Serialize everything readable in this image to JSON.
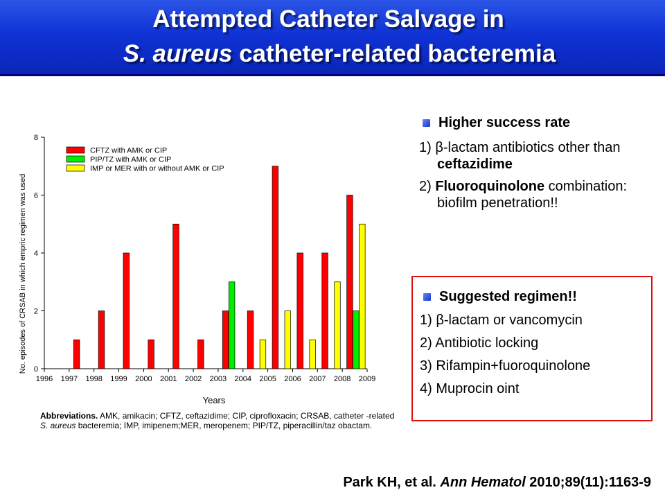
{
  "title": {
    "line1": "Attempted Catheter Salvage in",
    "line2_italic": "S. aureus",
    "line2_rest": " catheter-related bacteremia"
  },
  "chart_data": {
    "type": "bar",
    "categories": [
      "1997",
      "1998",
      "1999",
      "2000",
      "2001",
      "2002",
      "2003",
      "2004",
      "2005",
      "2006",
      "2007",
      "2008"
    ],
    "x_ticks": [
      "1996",
      "1997",
      "1998",
      "1999",
      "2000",
      "2001",
      "2002",
      "2003",
      "2004",
      "2005",
      "2006",
      "2007",
      "2008",
      "2009"
    ],
    "series": [
      {
        "name": "CFTZ with AMK or CIP",
        "color": "#ff0000",
        "values": [
          1,
          2,
          4,
          1,
          5,
          1,
          2,
          2,
          7,
          4,
          4,
          6
        ]
      },
      {
        "name": "PIP/TZ with AMK or CIP",
        "color": "#00ee00",
        "values": [
          0,
          0,
          0,
          0,
          0,
          0,
          3,
          0,
          0,
          0,
          0,
          2
        ]
      },
      {
        "name": "IMP or MER with or without AMK or CIP",
        "color": "#ffff00",
        "values": [
          0,
          0,
          0,
          0,
          0,
          0,
          0,
          1,
          2,
          1,
          3,
          5
        ]
      }
    ],
    "xlabel": "Years",
    "ylabel": "No.  episodes of CRSAB in which empric regimen was used",
    "ylim": [
      0,
      8
    ],
    "yticks": [
      0,
      2,
      4,
      6,
      8
    ],
    "legend_position": "top-left"
  },
  "abbreviations": {
    "lead": "Abbreviations.",
    "text": " AMK, amikacin; CFTZ, ceftazidime; CIP, ciprofloxacin; CRSAB, catheter -related ",
    "italic": "S. aureus",
    "text2": " bacteremia; IMP, imipenem;MER, meropenem; PIP/TZ, piperacillin/taz obactam."
  },
  "panel1": {
    "heading": "Higher success rate",
    "item1_prefix": "1) β-lactam antibiotics other than ",
    "item1_bold": "ceftazidime",
    "item2_prefix": "2) ",
    "item2_bold": "Fluoroquinolone",
    "item2_rest": " combination: biofilm penetration!!"
  },
  "panel2": {
    "heading": "Suggested regimen!!",
    "items": [
      "1) β-lactam or vancomycin",
      "2) Antibiotic locking",
      "3) Rifampin+fuoroquinolone",
      "4) Muprocin oint"
    ]
  },
  "citation": {
    "authors": "Park KH, et al. ",
    "journal": "Ann Hematol",
    "ref": " 2010;89(11):1163-9"
  },
  "colors": {
    "title_bg": "#1033d6",
    "bullet": "#1636c8",
    "panel_border": "#e01010"
  }
}
